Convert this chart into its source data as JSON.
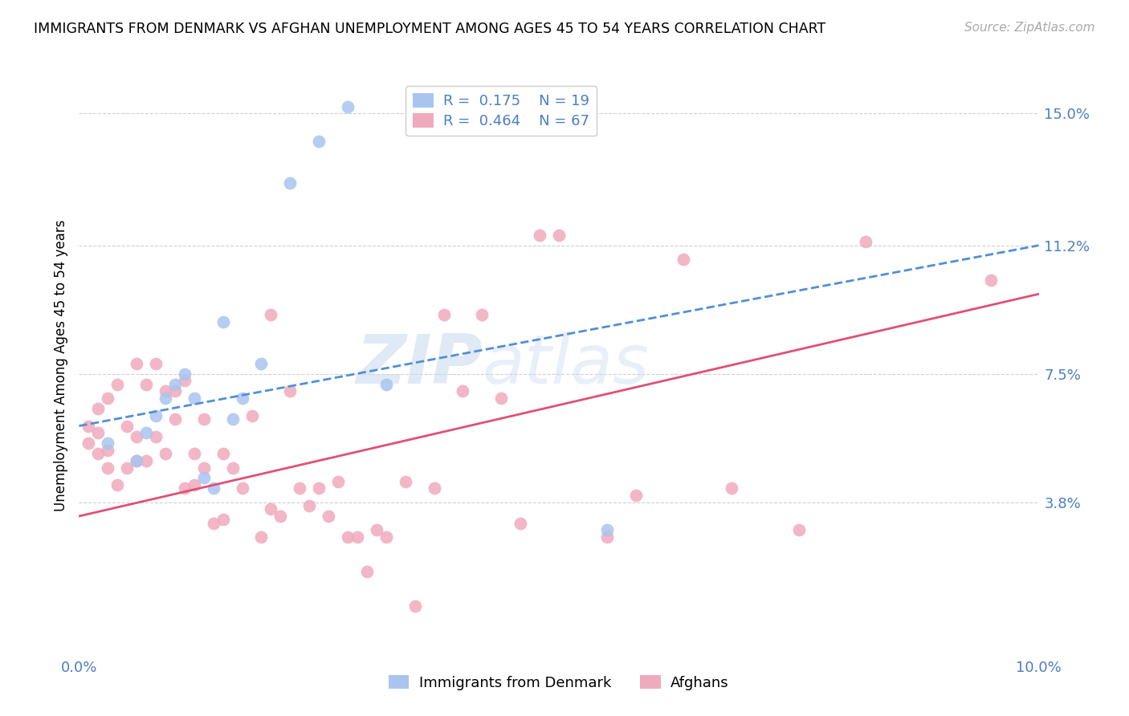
{
  "title": "IMMIGRANTS FROM DENMARK VS AFGHAN UNEMPLOYMENT AMONG AGES 45 TO 54 YEARS CORRELATION CHART",
  "source": "Source: ZipAtlas.com",
  "ylabel": "Unemployment Among Ages 45 to 54 years",
  "xlim": [
    0.0,
    0.1
  ],
  "ylim": [
    -0.005,
    0.16
  ],
  "ytick_positions": [
    0.038,
    0.075,
    0.112,
    0.15
  ],
  "ytick_labels": [
    "3.8%",
    "7.5%",
    "11.2%",
    "15.0%"
  ],
  "watermark_zip": "ZIP",
  "watermark_atlas": "atlas",
  "legend_denmark_r": "0.175",
  "legend_denmark_n": "19",
  "legend_afghan_r": "0.464",
  "legend_afghan_n": "67",
  "color_denmark": "#aac4f0",
  "color_afghan": "#f0aabe",
  "color_line_denmark": "#5090d8",
  "color_line_afghan": "#e05075",
  "color_text_blue": "#4a7fc4",
  "color_grid": "#d0d0d0",
  "denmark_x": [
    0.003,
    0.006,
    0.007,
    0.008,
    0.009,
    0.01,
    0.011,
    0.012,
    0.013,
    0.014,
    0.015,
    0.016,
    0.017,
    0.019,
    0.022,
    0.025,
    0.028,
    0.032,
    0.055
  ],
  "denmark_y": [
    0.055,
    0.05,
    0.058,
    0.063,
    0.068,
    0.072,
    0.075,
    0.068,
    0.045,
    0.042,
    0.09,
    0.062,
    0.068,
    0.078,
    0.13,
    0.142,
    0.152,
    0.072,
    0.03
  ],
  "afghan_x": [
    0.001,
    0.001,
    0.002,
    0.002,
    0.002,
    0.003,
    0.003,
    0.003,
    0.004,
    0.004,
    0.005,
    0.005,
    0.006,
    0.006,
    0.006,
    0.007,
    0.007,
    0.008,
    0.008,
    0.009,
    0.009,
    0.01,
    0.01,
    0.011,
    0.011,
    0.012,
    0.012,
    0.013,
    0.013,
    0.014,
    0.015,
    0.015,
    0.016,
    0.017,
    0.018,
    0.019,
    0.02,
    0.02,
    0.021,
    0.022,
    0.023,
    0.024,
    0.025,
    0.026,
    0.027,
    0.028,
    0.029,
    0.03,
    0.031,
    0.032,
    0.034,
    0.035,
    0.037,
    0.038,
    0.04,
    0.042,
    0.044,
    0.046,
    0.048,
    0.05,
    0.055,
    0.058,
    0.063,
    0.068,
    0.075,
    0.082,
    0.095
  ],
  "afghan_y": [
    0.055,
    0.06,
    0.052,
    0.058,
    0.065,
    0.048,
    0.053,
    0.068,
    0.043,
    0.072,
    0.048,
    0.06,
    0.05,
    0.057,
    0.078,
    0.05,
    0.072,
    0.057,
    0.078,
    0.052,
    0.07,
    0.062,
    0.07,
    0.042,
    0.073,
    0.043,
    0.052,
    0.048,
    0.062,
    0.032,
    0.033,
    0.052,
    0.048,
    0.042,
    0.063,
    0.028,
    0.036,
    0.092,
    0.034,
    0.07,
    0.042,
    0.037,
    0.042,
    0.034,
    0.044,
    0.028,
    0.028,
    0.018,
    0.03,
    0.028,
    0.044,
    0.008,
    0.042,
    0.092,
    0.07,
    0.092,
    0.068,
    0.032,
    0.115,
    0.115,
    0.028,
    0.04,
    0.108,
    0.042,
    0.03,
    0.113,
    0.102
  ],
  "line_dk_x0": 0.0,
  "line_dk_y0": 0.06,
  "line_dk_x1": 0.1,
  "line_dk_y1": 0.112,
  "line_af_x0": 0.0,
  "line_af_y0": 0.034,
  "line_af_x1": 0.1,
  "line_af_y1": 0.098
}
